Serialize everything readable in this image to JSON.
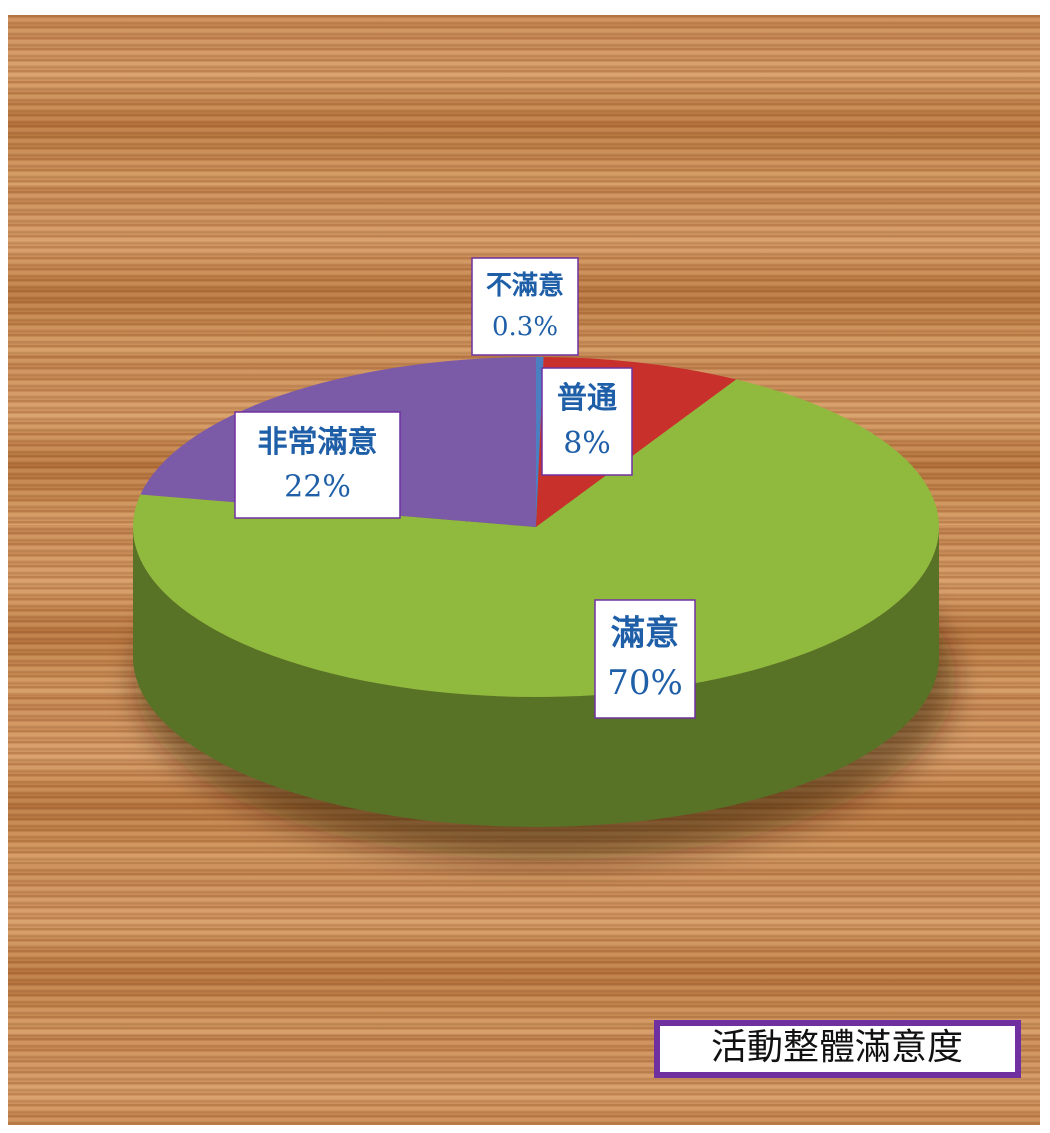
{
  "chart_data": {
    "type": "pie",
    "title": "活動整體滿意度",
    "categories": [
      "不滿意",
      "普通",
      "滿意",
      "非常滿意"
    ],
    "values": [
      0.3,
      8,
      70,
      22
    ],
    "value_labels": [
      "0.3%",
      "8%",
      "70%",
      "22%"
    ],
    "colors": [
      "#4a7fc1",
      "#c8302c",
      "#8fba3e",
      "#7b5aa8"
    ]
  }
}
